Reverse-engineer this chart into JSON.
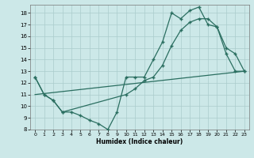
{
  "title": "",
  "xlabel": "Humidex (Indice chaleur)",
  "bg_color": "#cce8e8",
  "line_color": "#2a6e60",
  "grid_color": "#aacccc",
  "xlim": [
    -0.5,
    23.5
  ],
  "ylim": [
    8,
    18.7
  ],
  "xticks": [
    0,
    1,
    2,
    3,
    4,
    5,
    6,
    7,
    8,
    9,
    10,
    11,
    12,
    13,
    14,
    15,
    16,
    17,
    18,
    19,
    20,
    21,
    22,
    23
  ],
  "yticks": [
    8,
    9,
    10,
    11,
    12,
    13,
    14,
    15,
    16,
    17,
    18
  ],
  "line1_x": [
    0,
    1,
    2,
    3,
    4,
    5,
    6,
    7,
    8,
    9,
    10,
    11,
    12,
    13,
    14,
    15,
    16,
    17,
    18,
    19,
    20,
    21,
    22,
    23
  ],
  "line1_y": [
    12.5,
    11.0,
    10.5,
    9.5,
    9.5,
    9.2,
    8.8,
    8.5,
    8.0,
    9.5,
    12.5,
    12.5,
    12.5,
    14.0,
    15.5,
    18.0,
    17.5,
    18.2,
    18.5,
    17.0,
    16.8,
    14.5,
    13.0,
    13.0
  ],
  "line2_x": [
    0,
    1,
    2,
    3,
    10,
    11,
    12,
    13,
    14,
    15,
    16,
    17,
    18,
    19,
    20,
    21,
    22,
    23
  ],
  "line2_y": [
    12.5,
    11.0,
    10.5,
    9.5,
    11.0,
    11.5,
    12.2,
    12.5,
    13.5,
    15.2,
    16.5,
    17.2,
    17.5,
    17.5,
    16.8,
    15.0,
    14.5,
    13.0
  ],
  "line3_x": [
    0,
    23
  ],
  "line3_y": [
    11.0,
    13.0
  ]
}
